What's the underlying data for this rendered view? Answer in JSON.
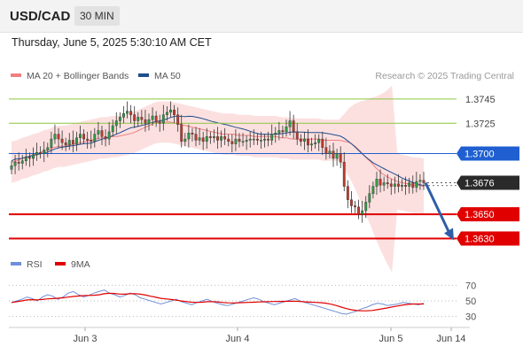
{
  "header": {
    "symbol": "USD/CAD",
    "timeframe": "30 MIN"
  },
  "datetime": "Thursday, June 5, 2025 5:30:10 AM CET",
  "legend": {
    "ma20": {
      "label": "MA 20 + Bollinger Bands",
      "color": "#f08080"
    },
    "ma50": {
      "label": "MA 50",
      "color": "#1f4e8c"
    }
  },
  "credit": "Research © 2025 Trading Central",
  "rsi_legend": {
    "rsi": {
      "label": "RSI",
      "color": "#6f8fd8"
    },
    "ma9": {
      "label": "9MA",
      "color": "#e00000"
    }
  },
  "chart_data": {
    "type": "candlestick",
    "instrument": "USD/CAD",
    "interval": "30 MIN",
    "price_range": [
      1.3618,
      1.3758
    ],
    "x_ticks": [
      "Jun 3",
      "Jun 4",
      "Jun 5",
      "Jun 14"
    ],
    "levels": [
      {
        "value": 1.3745,
        "label": "1.3745",
        "style": "resistance-thin",
        "color": "#8cc63f"
      },
      {
        "value": 1.3725,
        "label": "1.3725",
        "style": "resistance-thin",
        "color": "#8cc63f"
      },
      {
        "value": 1.37,
        "label": "1.3700",
        "style": "pivot",
        "color": "#1f5fd1"
      },
      {
        "value": 1.3676,
        "label": "1.3676",
        "style": "last-price",
        "color": "#222222"
      },
      {
        "value": 1.365,
        "label": "1.3650",
        "style": "support",
        "color": "#e00000"
      },
      {
        "value": 1.363,
        "label": "1.3630",
        "style": "support",
        "color": "#e00000"
      }
    ],
    "forecast_arrow": {
      "from": 1.3676,
      "to": 1.363,
      "color": "#2f5da8"
    },
    "close_series": [
      1.369,
      1.3693,
      1.3692,
      1.3694,
      1.3697,
      1.3696,
      1.3699,
      1.3701,
      1.37,
      1.3703,
      1.3705,
      1.3712,
      1.3716,
      1.3712,
      1.3709,
      1.3707,
      1.3711,
      1.3708,
      1.3713,
      1.3716,
      1.3712,
      1.3711,
      1.371,
      1.3716,
      1.3719,
      1.3714,
      1.3712,
      1.3718,
      1.3723,
      1.3727,
      1.373,
      1.3733,
      1.3735,
      1.3732,
      1.3727,
      1.373,
      1.3728,
      1.3725,
      1.3728,
      1.3731,
      1.3726,
      1.3725,
      1.3732,
      1.3734,
      1.3736,
      1.3732,
      1.3724,
      1.371,
      1.3712,
      1.3717,
      1.3716,
      1.3711,
      1.3713,
      1.371,
      1.3714,
      1.3713,
      1.3714,
      1.3711,
      1.3714,
      1.3712,
      1.371,
      1.3708,
      1.3712,
      1.371,
      1.371,
      1.3711,
      1.3712,
      1.3712,
      1.3711,
      1.3711,
      1.3712,
      1.3711,
      1.3716,
      1.3717,
      1.3719,
      1.3718,
      1.3722,
      1.3727,
      1.3718,
      1.3712,
      1.371,
      1.3712,
      1.3707,
      1.3708,
      1.3709,
      1.3712,
      1.3705,
      1.37,
      1.3702,
      1.3696,
      1.37,
      1.3693,
      1.3673,
      1.3662,
      1.3657,
      1.3656,
      1.365,
      1.3653,
      1.366,
      1.3667,
      1.3673,
      1.3679,
      1.3674,
      1.3676,
      1.3675,
      1.3673,
      1.3675,
      1.3673,
      1.3674,
      1.3673,
      1.3676,
      1.3672,
      1.3677,
      1.3678,
      1.3676
    ],
    "ma20": [
      1.3693,
      1.3694,
      1.3696,
      1.3697,
      1.3699,
      1.37,
      1.3702,
      1.3703,
      1.3705,
      1.3706,
      1.3706,
      1.3707,
      1.3708,
      1.3709,
      1.371,
      1.3711,
      1.3712,
      1.3713,
      1.3713,
      1.3714,
      1.3714,
      1.3715,
      1.3716,
      1.3717,
      1.3719,
      1.3721,
      1.3723,
      1.3725,
      1.3726,
      1.3726,
      1.3726,
      1.3725,
      1.3724,
      1.3723,
      1.3722,
      1.3721,
      1.372,
      1.3719,
      1.3718,
      1.3717,
      1.3716,
      1.3716,
      1.3716,
      1.3715,
      1.3715,
      1.3715,
      1.3714,
      1.3714,
      1.3714,
      1.3714,
      1.3714,
      1.3713,
      1.3713,
      1.3712,
      1.3712,
      1.3712,
      1.3712,
      1.3712,
      1.3712,
      1.3711,
      1.3711,
      1.3711,
      1.3711,
      1.371,
      1.3709,
      1.3706,
      1.3702,
      1.3697,
      1.3693,
      1.3688,
      1.3684,
      1.3681,
      1.3679,
      1.3677,
      1.3676,
      1.3675,
      1.3674,
      1.3674,
      1.3673
    ],
    "rsi_axis": [
      30,
      50,
      70
    ],
    "rsi": [
      48,
      50,
      52,
      55,
      53,
      50,
      55,
      58,
      56,
      52,
      55,
      60,
      62,
      58,
      55,
      57,
      60,
      62,
      64,
      60,
      58,
      55,
      57,
      60,
      58,
      54,
      52,
      50,
      48,
      46,
      48,
      50,
      52,
      49,
      47,
      45,
      48,
      50,
      52,
      49,
      47,
      45,
      44,
      46,
      48,
      50,
      52,
      54,
      52,
      49,
      47,
      45,
      47,
      49,
      51,
      53,
      50,
      48,
      46,
      44,
      42,
      40,
      38,
      36,
      34,
      33,
      35,
      37,
      40,
      42,
      45,
      47,
      46,
      44,
      45,
      46,
      48,
      47,
      46,
      45,
      47
    ]
  }
}
